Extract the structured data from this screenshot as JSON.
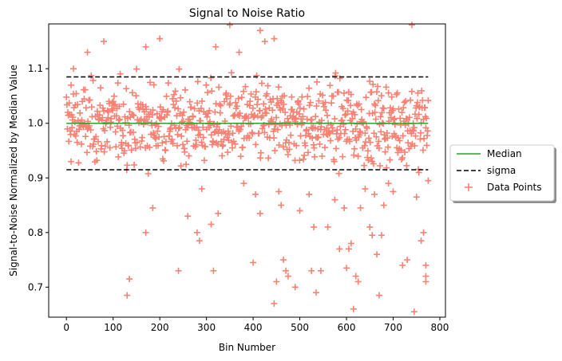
{
  "chart_data": {
    "type": "scatter",
    "title": "Signal to Noise Ratio",
    "xlabel": "Bin Number",
    "ylabel": "Signal-to-Noise Normalized by Median Value",
    "xlim": [
      -38,
      812
    ],
    "ylim": [
      0.645,
      1.182
    ],
    "x_ticks": [
      0,
      100,
      200,
      300,
      400,
      500,
      600,
      700,
      800
    ],
    "y_ticks": [
      0.7,
      0.8,
      0.9,
      1.0,
      1.1
    ],
    "y_tick_labels": [
      "0.7",
      "0.8",
      "0.9",
      "1.0",
      "1.1"
    ],
    "grid": false,
    "legend_position": "right-outside",
    "lines": [
      {
        "name": "Median",
        "style": "solid",
        "color": "#2ca02c",
        "x": [
          0,
          775
        ],
        "y": [
          1.0,
          1.0
        ]
      },
      {
        "name": "sigma",
        "style": "dashed",
        "color": "#000000",
        "x": [
          0,
          775
        ],
        "y": [
          1.085,
          1.085
        ]
      },
      {
        "name": "sigma",
        "style": "dashed",
        "color": "#000000",
        "x": [
          0,
          775
        ],
        "y": [
          0.915,
          0.915
        ]
      }
    ],
    "scatter_series": {
      "name": "Data Points",
      "marker": "+",
      "color": "#fa8072",
      "n_points": 775,
      "x_range": [
        0,
        775
      ],
      "center": 1.0,
      "spread": 0.045,
      "outliers": [
        [
          10,
          1.07
        ],
        [
          15,
          1.1
        ],
        [
          45,
          1.13
        ],
        [
          80,
          1.15
        ],
        [
          130,
          0.685
        ],
        [
          135,
          0.715
        ],
        [
          170,
          1.14
        ],
        [
          170,
          0.8
        ],
        [
          185,
          0.845
        ],
        [
          200,
          1.155
        ],
        [
          240,
          0.73
        ],
        [
          260,
          0.83
        ],
        [
          280,
          0.8
        ],
        [
          285,
          0.785
        ],
        [
          290,
          0.88
        ],
        [
          310,
          0.815
        ],
        [
          315,
          0.73
        ],
        [
          320,
          1.14
        ],
        [
          325,
          0.835
        ],
        [
          350,
          1.18
        ],
        [
          370,
          1.13
        ],
        [
          380,
          0.89
        ],
        [
          400,
          0.745
        ],
        [
          405,
          0.87
        ],
        [
          415,
          1.17
        ],
        [
          415,
          0.835
        ],
        [
          425,
          1.15
        ],
        [
          445,
          1.155
        ],
        [
          445,
          0.67
        ],
        [
          450,
          0.71
        ],
        [
          455,
          0.875
        ],
        [
          460,
          0.85
        ],
        [
          465,
          0.75
        ],
        [
          470,
          0.73
        ],
        [
          475,
          0.72
        ],
        [
          490,
          0.7
        ],
        [
          500,
          0.84
        ],
        [
          520,
          0.87
        ],
        [
          525,
          0.73
        ],
        [
          530,
          0.81
        ],
        [
          535,
          0.69
        ],
        [
          545,
          0.73
        ],
        [
          560,
          0.81
        ],
        [
          575,
          0.86
        ],
        [
          585,
          0.77
        ],
        [
          595,
          0.845
        ],
        [
          600,
          0.735
        ],
        [
          605,
          0.77
        ],
        [
          610,
          0.78
        ],
        [
          615,
          0.66
        ],
        [
          620,
          0.72
        ],
        [
          625,
          0.71
        ],
        [
          630,
          0.845
        ],
        [
          640,
          0.88
        ],
        [
          650,
          0.81
        ],
        [
          655,
          0.795
        ],
        [
          660,
          0.87
        ],
        [
          665,
          0.76
        ],
        [
          670,
          0.685
        ],
        [
          675,
          0.795
        ],
        [
          680,
          0.85
        ],
        [
          690,
          0.89
        ],
        [
          700,
          0.875
        ],
        [
          720,
          0.74
        ],
        [
          730,
          0.75
        ],
        [
          740,
          1.18
        ],
        [
          745,
          0.655
        ],
        [
          750,
          0.865
        ],
        [
          755,
          0.91
        ],
        [
          760,
          0.785
        ],
        [
          765,
          0.8
        ],
        [
          770,
          0.74
        ],
        [
          770,
          0.72
        ],
        [
          770,
          0.71
        ],
        [
          775,
          0.895
        ]
      ]
    },
    "legend": [
      "Median",
      "sigma",
      "Data Points"
    ]
  }
}
